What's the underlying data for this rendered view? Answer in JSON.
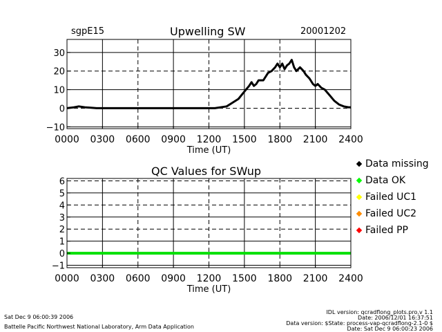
{
  "header": {
    "station": "sgpE15",
    "date": "20001202"
  },
  "chart_data": [
    {
      "type": "line",
      "title": "Upwelling SW",
      "xlabel": "Time (UT)",
      "ylabel": "",
      "xlim": [
        0,
        2400
      ],
      "ylim": [
        -11,
        37
      ],
      "x_tick_labels": [
        "0000",
        "0300",
        "0600",
        "0900",
        "1200",
        "1500",
        "1800",
        "2100",
        "2400"
      ],
      "y_tick_labels": [
        "−10",
        "0",
        "10",
        "20",
        "30"
      ],
      "y_ticks": [
        -10,
        0,
        10,
        20,
        30
      ],
      "grid": true,
      "series": [
        {
          "color": "#000000",
          "x": [
            0,
            60,
            100,
            150,
            250,
            400,
            600,
            800,
            1000,
            1200,
            1250,
            1300,
            1350,
            1400,
            1450,
            1500,
            1540,
            1560,
            1580,
            1600,
            1620,
            1660,
            1700,
            1730,
            1760,
            1780,
            1800,
            1820,
            1840,
            1860,
            1880,
            1900,
            1920,
            1940,
            1970,
            2000,
            2020,
            2050,
            2080,
            2100,
            2120,
            2150,
            2180,
            2220,
            2260,
            2300,
            2340,
            2380,
            2400
          ],
          "y": [
            0,
            0.5,
            1,
            0.5,
            0,
            0,
            0,
            0,
            0,
            0,
            0,
            0.5,
            1,
            3,
            5,
            9,
            12,
            14,
            12,
            13,
            15,
            15,
            19,
            20,
            22,
            24,
            22,
            24,
            21,
            23,
            24,
            26,
            22,
            20,
            22,
            20,
            18,
            16,
            13,
            12,
            13,
            11,
            10,
            7,
            4,
            2,
            1,
            0.5,
            0.5
          ]
        }
      ]
    },
    {
      "type": "line",
      "title": "QC Values for SWup",
      "xlabel": "Time (UT)",
      "ylabel": "",
      "xlim": [
        0,
        2400
      ],
      "ylim": [
        -1.2,
        6.2
      ],
      "x_tick_labels": [
        "0000",
        "0300",
        "0600",
        "0900",
        "1200",
        "1500",
        "1800",
        "2100",
        "2400"
      ],
      "y_tick_labels": [
        "−1",
        "0",
        "1",
        "2",
        "3",
        "4",
        "5",
        "6"
      ],
      "y_ticks": [
        -1,
        0,
        1,
        2,
        3,
        4,
        5,
        6
      ],
      "grid": true,
      "series": [
        {
          "color": "#00e000",
          "x": [
            0,
            2400
          ],
          "y": [
            0,
            0
          ]
        }
      ]
    }
  ],
  "legend": [
    {
      "label": "Data missing",
      "color": "#000000"
    },
    {
      "label": "Data OK",
      "color": "#00ff00"
    },
    {
      "label": "Failed UC1",
      "color": "#ffff00"
    },
    {
      "label": "Failed UC2",
      "color": "#ff8c00"
    },
    {
      "label": "Failed PP",
      "color": "#ff0000"
    }
  ],
  "footer": {
    "timestamp": "Sat Dec  9 06:00:39 2006",
    "lab": "Battelle Pacific Northwest National Laboratory, Arm Data Application",
    "idl_version": "IDL version: qcradflong_plots.pro,v 1.1",
    "idl_date": "Date: 2006/12/01 16:37:51",
    "data_version": "Data version: $State: process-vap-qcradflong-2.1-0 $",
    "data_date": "Date: Sat Dec  9 06:00:23 2006"
  }
}
